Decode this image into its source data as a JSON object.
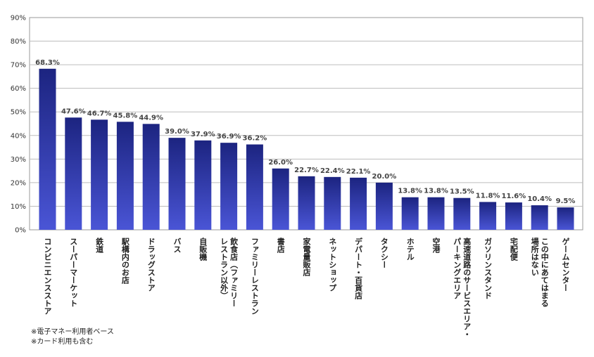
{
  "chart_data": {
    "type": "bar",
    "categories": [
      "コンビニエンスストア",
      "スーパーマーケット",
      "鉄道",
      "駅構内のお店",
      "ドラッグストア",
      "バス",
      "自販機",
      "飲食店（ファミリーレストラン以外）",
      "ファミリーレストラン",
      "書店",
      "家電量販店",
      "ネットショップ",
      "デパート・百貨店",
      "タクシー",
      "ホテル",
      "空港",
      "高速道路のサービスエリア・パーキングエリア",
      "ガソリンスタンド",
      "宅配便",
      "この中にあてはまる場所はない",
      "ゲームセンター"
    ],
    "category_lines": [
      [
        "コンビニエンスストア"
      ],
      [
        "スーパーマーケット"
      ],
      [
        "鉄道"
      ],
      [
        "駅構内のお店"
      ],
      [
        "ドラッグストア"
      ],
      [
        "バス"
      ],
      [
        "自販機"
      ],
      [
        "飲食店（ファミリー",
        "レストラン以外）"
      ],
      [
        "ファミリーレストラン"
      ],
      [
        "書店"
      ],
      [
        "家電量販店"
      ],
      [
        "ネットショップ"
      ],
      [
        "デパート・百貨店"
      ],
      [
        "タクシー"
      ],
      [
        "ホテル"
      ],
      [
        "空港"
      ],
      [
        "高速道路のサービスエリア・",
        "パーキングエリア"
      ],
      [
        "ガソリンスタンド"
      ],
      [
        "宅配便"
      ],
      [
        "この中にあてはまる",
        "場所はない"
      ],
      [
        "ゲームセンター"
      ]
    ],
    "values": [
      68.3,
      47.6,
      46.7,
      45.8,
      44.9,
      39.0,
      37.9,
      36.9,
      36.2,
      26.0,
      22.7,
      22.4,
      22.1,
      20.0,
      13.8,
      13.8,
      13.5,
      11.8,
      11.6,
      10.4,
      9.5
    ],
    "value_labels": [
      "68.3%",
      "47.6%",
      "46.7%",
      "45.8%",
      "44.9%",
      "39.0%",
      "37.9%",
      "36.9%",
      "36.2%",
      "26.0%",
      "22.7%",
      "22.4%",
      "22.1%",
      "20.0%",
      "13.8%",
      "13.8%",
      "13.5%",
      "11.8%",
      "11.6%",
      "10.4%",
      "9.5%"
    ],
    "yticks": [
      0,
      10,
      20,
      30,
      40,
      50,
      60,
      70,
      80,
      90
    ],
    "ytick_labels": [
      "0%",
      "10%",
      "20%",
      "30%",
      "40%",
      "50%",
      "60%",
      "70%",
      "80%",
      "90%"
    ],
    "ylim": [
      0,
      90
    ],
    "grid": true,
    "bar_color_top": "#1c2480",
    "bar_color_bottom": "#4a55d6",
    "title": "",
    "xlabel": "",
    "ylabel": ""
  },
  "notes": {
    "line1": "※電子マネー利用者ベース",
    "line2": "※カード利用も含む"
  }
}
